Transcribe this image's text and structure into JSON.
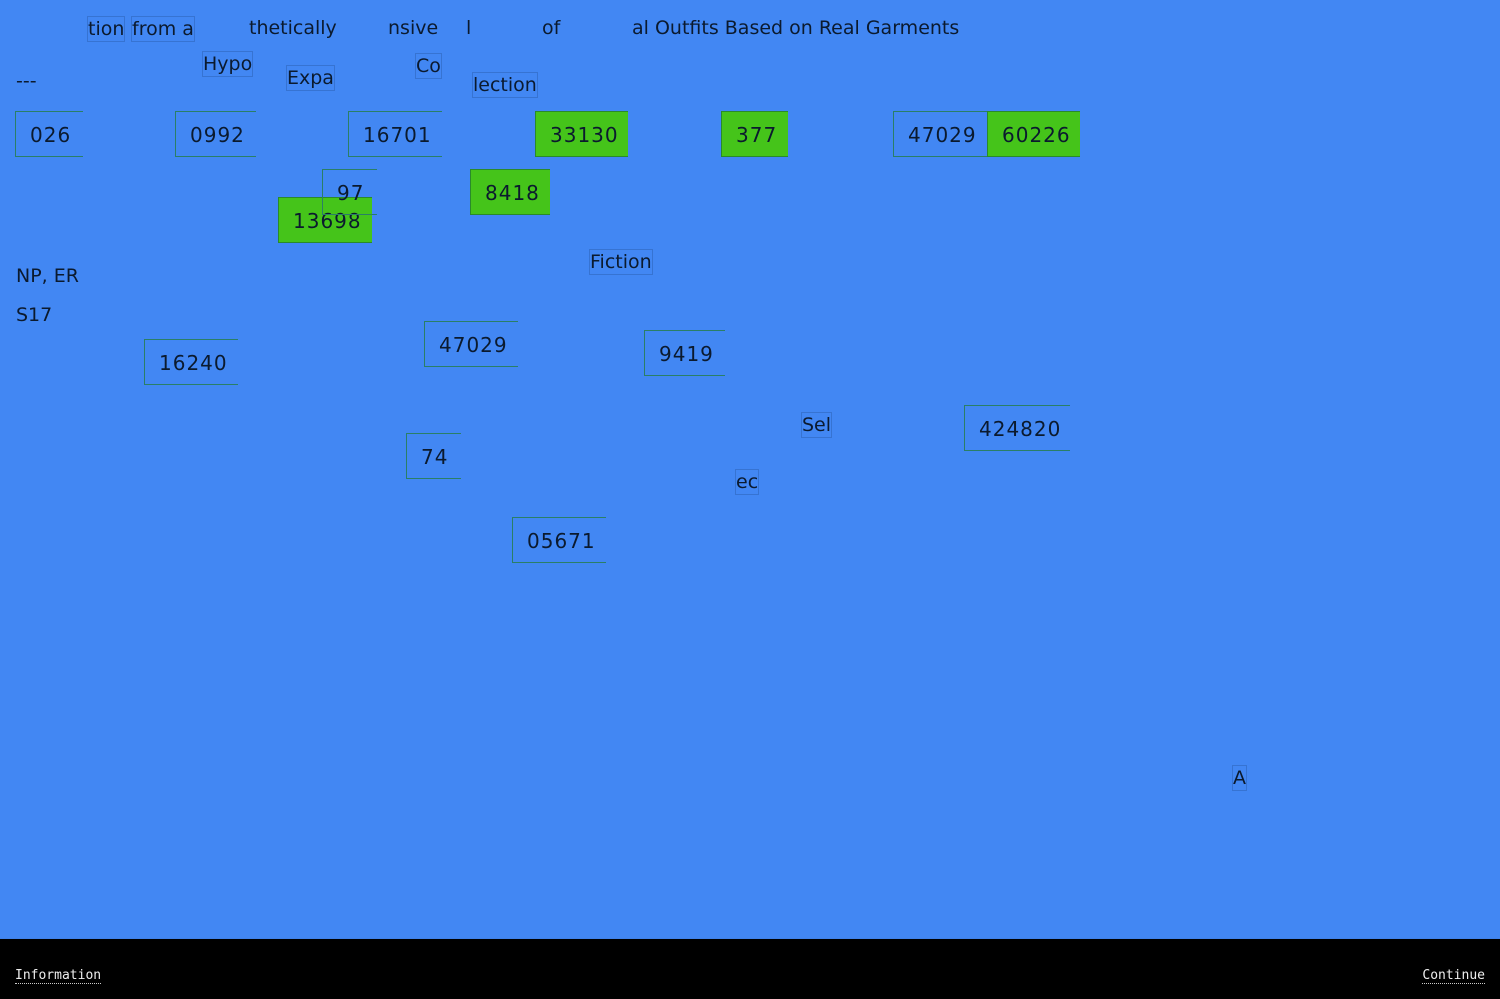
{
  "title_fragments": [
    "tion",
    "from a",
    "thetically",
    "nsive",
    "l",
    "of",
    "al Outfits Based on Real Garments"
  ],
  "sub_fragments": [
    "Hypo",
    "Expa",
    "Co",
    "lection",
    "---",
    "NP, ER",
    "S17",
    "Fiction",
    "Sel",
    "ec",
    "A"
  ],
  "numbers": [
    {
      "value": "026",
      "highlighted": false
    },
    {
      "value": "0992",
      "highlighted": false
    },
    {
      "value": "16701",
      "highlighted": false
    },
    {
      "value": "33130",
      "highlighted": true
    },
    {
      "value": "377",
      "highlighted": true
    },
    {
      "value": "47029",
      "highlighted": false
    },
    {
      "value": "60226",
      "highlighted": true
    },
    {
      "value": "97",
      "highlighted": false
    },
    {
      "value": "13698",
      "highlighted": true
    },
    {
      "value": "8418",
      "highlighted": true
    },
    {
      "value": "16240",
      "highlighted": false
    },
    {
      "value": "47029",
      "highlighted": false
    },
    {
      "value": "9419",
      "highlighted": false
    },
    {
      "value": "74",
      "highlighted": false
    },
    {
      "value": "424820",
      "highlighted": false
    },
    {
      "value": "05671",
      "highlighted": false
    }
  ],
  "footer": {
    "information": "Information",
    "continue": "Continue"
  },
  "colors": {
    "background": "#4287f3",
    "highlight": "#45c41a",
    "footer": "#000000"
  }
}
